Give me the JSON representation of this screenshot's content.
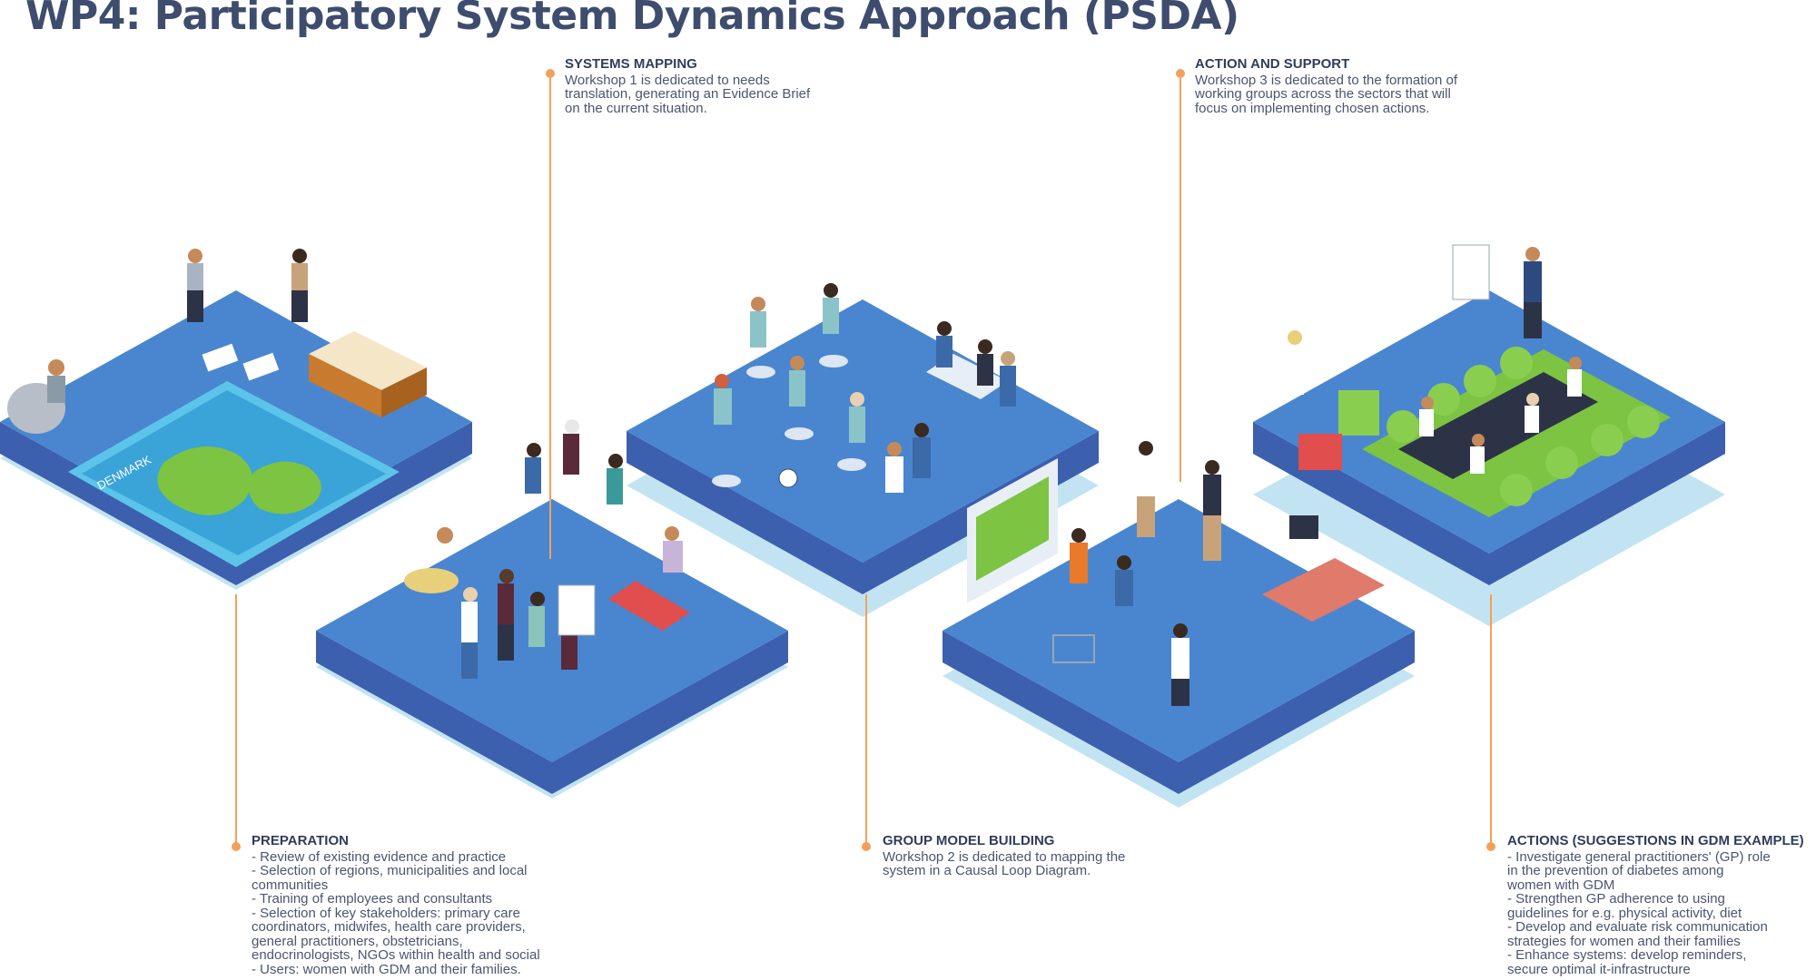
{
  "title": "WP4: Participatory System Dynamics Approach (PSDA)",
  "colors": {
    "platform_top": "#4a86cf",
    "platform_side": "#3c5fae",
    "platform_shadow": "#c2e4f2",
    "leader_line": "#f3a05a",
    "title_text": "#3e4d6e"
  },
  "callouts": {
    "systems_mapping": {
      "heading": "SYSTEMS MAPPING",
      "lines": [
        "Workshop 1 is dedicated to needs",
        "translation, generating an Evidence Brief",
        "on the current situation."
      ]
    },
    "action_support": {
      "heading": "ACTION AND SUPPORT",
      "lines": [
        "Workshop 3 is dedicated to the formation of",
        "working groups across the sectors that will",
        "focus on implementing chosen actions."
      ]
    },
    "preparation": {
      "heading": "PREPARATION",
      "lines": [
        "- Review of existing evidence and practice",
        "- Selection of regions, municipalities and local",
        "communities",
        "- Training of employees and consultants",
        "- Selection of key stakeholders: primary care",
        "coordinators, midwifes, health care providers,",
        "general practitioners, obstetricians,",
        "endocrinologists, NGOs within health and social",
        "- Users: women with GDM and their families."
      ]
    },
    "group_model": {
      "heading": "GROUP MODEL BUILDING",
      "lines": [
        "Workshop 2 is dedicated to mapping the",
        "system in a Causal Loop Diagram."
      ]
    },
    "actions": {
      "heading": "ACTIONS (SUGGESTIONS IN GDM EXAMPLE)",
      "lines": [
        "- Investigate general practitioners' (GP) role",
        "in the prevention of diabetes among",
        "women with GDM",
        "- Strengthen GP adherence to using",
        "guidelines for e.g. physical activity, diet",
        "- Develop and evaluate risk communication",
        "strategies for women and their families",
        "- Enhance systems: develop reminders,",
        "secure optimal it-infrastructure"
      ]
    }
  },
  "illustration": {
    "map_label": "DENMARK"
  }
}
